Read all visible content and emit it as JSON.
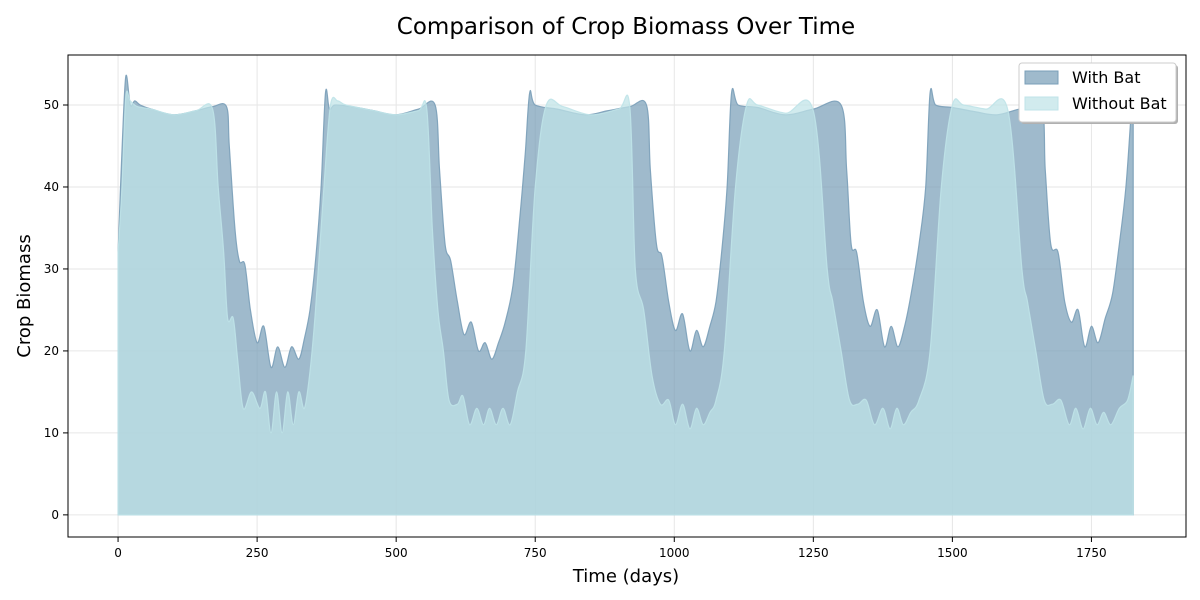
{
  "chart_data": {
    "type": "area",
    "title": "Comparison of Crop Biomass Over Time",
    "xlabel": "Time (days)",
    "ylabel": "Crop Biomass",
    "xlim": [
      -90,
      1920
    ],
    "ylim": [
      -2.7,
      56.1
    ],
    "xticks": [
      0,
      250,
      500,
      750,
      1000,
      1250,
      1500,
      1750
    ],
    "yticks": [
      0,
      10,
      20,
      30,
      40,
      50
    ],
    "grid": true,
    "legend_position": "top-right",
    "series": [
      {
        "name": "With Bat",
        "color": "#7a9fb8",
        "opacity": 0.72,
        "x": [
          0,
          7,
          14,
          22,
          30,
          40,
          60,
          100,
          140,
          170,
          195,
          200,
          210,
          218,
          228,
          238,
          250,
          262,
          275,
          287,
          300,
          312,
          325,
          335,
          345,
          355,
          365,
          373,
          380,
          390,
          420,
          460,
          500,
          540,
          570,
          578,
          588,
          598,
          610,
          622,
          635,
          648,
          660,
          672,
          684,
          696,
          710,
          722,
          732,
          740,
          750,
          790,
          840,
          880,
          920,
          950,
          957,
          968,
          978,
          990,
          1002,
          1015,
          1028,
          1040,
          1052,
          1064,
          1075,
          1085,
          1095,
          1103,
          1115,
          1150,
          1200,
          1250,
          1300,
          1310,
          1318,
          1328,
          1340,
          1352,
          1365,
          1378,
          1390,
          1402,
          1414,
          1426,
          1440,
          1452,
          1460,
          1470,
          1500,
          1540,
          1580,
          1620,
          1660,
          1667,
          1677,
          1690,
          1702,
          1714,
          1726,
          1738,
          1750,
          1762,
          1775,
          1788,
          1800,
          1812,
          1822,
          1825
        ],
        "values": [
          32,
          44.5,
          53.5,
          50,
          50.5,
          50,
          49.5,
          48.8,
          49.3,
          49.8,
          49.8,
          45,
          35,
          31,
          30.5,
          25,
          21,
          23,
          18,
          20.5,
          18,
          20.5,
          19,
          21.5,
          25,
          31,
          40,
          51.5,
          49.5,
          50,
          49.8,
          49.3,
          48.8,
          49.5,
          50,
          42,
          33,
          31,
          26,
          22,
          23.5,
          20,
          21,
          19,
          21,
          23.5,
          28,
          36,
          44,
          51.5,
          50,
          49.5,
          48.8,
          49.3,
          49.8,
          50,
          42,
          33,
          31.5,
          26,
          22.5,
          24.5,
          20,
          22.5,
          20.5,
          23,
          26,
          32,
          40,
          51.5,
          50,
          49.7,
          48.8,
          49.5,
          50,
          42,
          33,
          32,
          26,
          23,
          25,
          20.5,
          23,
          20.5,
          23,
          27,
          33,
          40,
          51.5,
          50,
          49.7,
          49.2,
          48.8,
          49.5,
          50,
          42,
          33,
          32,
          26,
          23.5,
          25,
          20.5,
          23,
          21,
          24,
          27,
          33,
          40,
          49.5,
          50
        ]
      },
      {
        "name": "Without Bat",
        "color": "#bfe3e8",
        "opacity": 0.72,
        "x": [
          0,
          7,
          14,
          22,
          35,
          60,
          100,
          140,
          170,
          180,
          190,
          197,
          207,
          215,
          225,
          240,
          255,
          265,
          275,
          285,
          295,
          305,
          315,
          325,
          335,
          345,
          355,
          370,
          382,
          395,
          410,
          460,
          500,
          540,
          555,
          565,
          575,
          585,
          595,
          610,
          620,
          632,
          645,
          657,
          668,
          680,
          692,
          705,
          718,
          733,
          750,
          770,
          800,
          850,
          900,
          920,
          930,
          945,
          960,
          975,
          990,
          1002,
          1015,
          1028,
          1040,
          1052,
          1064,
          1075,
          1090,
          1110,
          1130,
          1150,
          1200,
          1250,
          1275,
          1285,
          1300,
          1315,
          1330,
          1345,
          1360,
          1375,
          1388,
          1400,
          1412,
          1425,
          1440,
          1460,
          1480,
          1500,
          1520,
          1560,
          1600,
          1625,
          1635,
          1650,
          1665,
          1680,
          1695,
          1710,
          1722,
          1735,
          1748,
          1760,
          1772,
          1785,
          1800,
          1815,
          1825
        ],
        "values": [
          32,
          40,
          51,
          50.5,
          49.8,
          49.5,
          48.8,
          49.3,
          49.5,
          40,
          32,
          24,
          24,
          19,
          13,
          15,
          13,
          15,
          10,
          15,
          10,
          15,
          11,
          15,
          13,
          17.5,
          25,
          40,
          50,
          50.5,
          50,
          49.3,
          48.8,
          49.3,
          49.5,
          35,
          25,
          20,
          14,
          13.5,
          14.5,
          11,
          13,
          11,
          13,
          11,
          13,
          11,
          15,
          20,
          40,
          50,
          49.8,
          48.8,
          49.5,
          49.8,
          30,
          25,
          17,
          13.5,
          14,
          11,
          13.5,
          10.5,
          13,
          11,
          12.5,
          14,
          20,
          40,
          50,
          50,
          49,
          49.3,
          30,
          26,
          20,
          14,
          13.5,
          14,
          11,
          13,
          10.5,
          13,
          11,
          12.5,
          14,
          20,
          40,
          50,
          50,
          49.5,
          49.3,
          30,
          26,
          20,
          14,
          13.5,
          14,
          11,
          13,
          10.5,
          13,
          11,
          12.5,
          11,
          13,
          14,
          17
        ]
      }
    ]
  }
}
